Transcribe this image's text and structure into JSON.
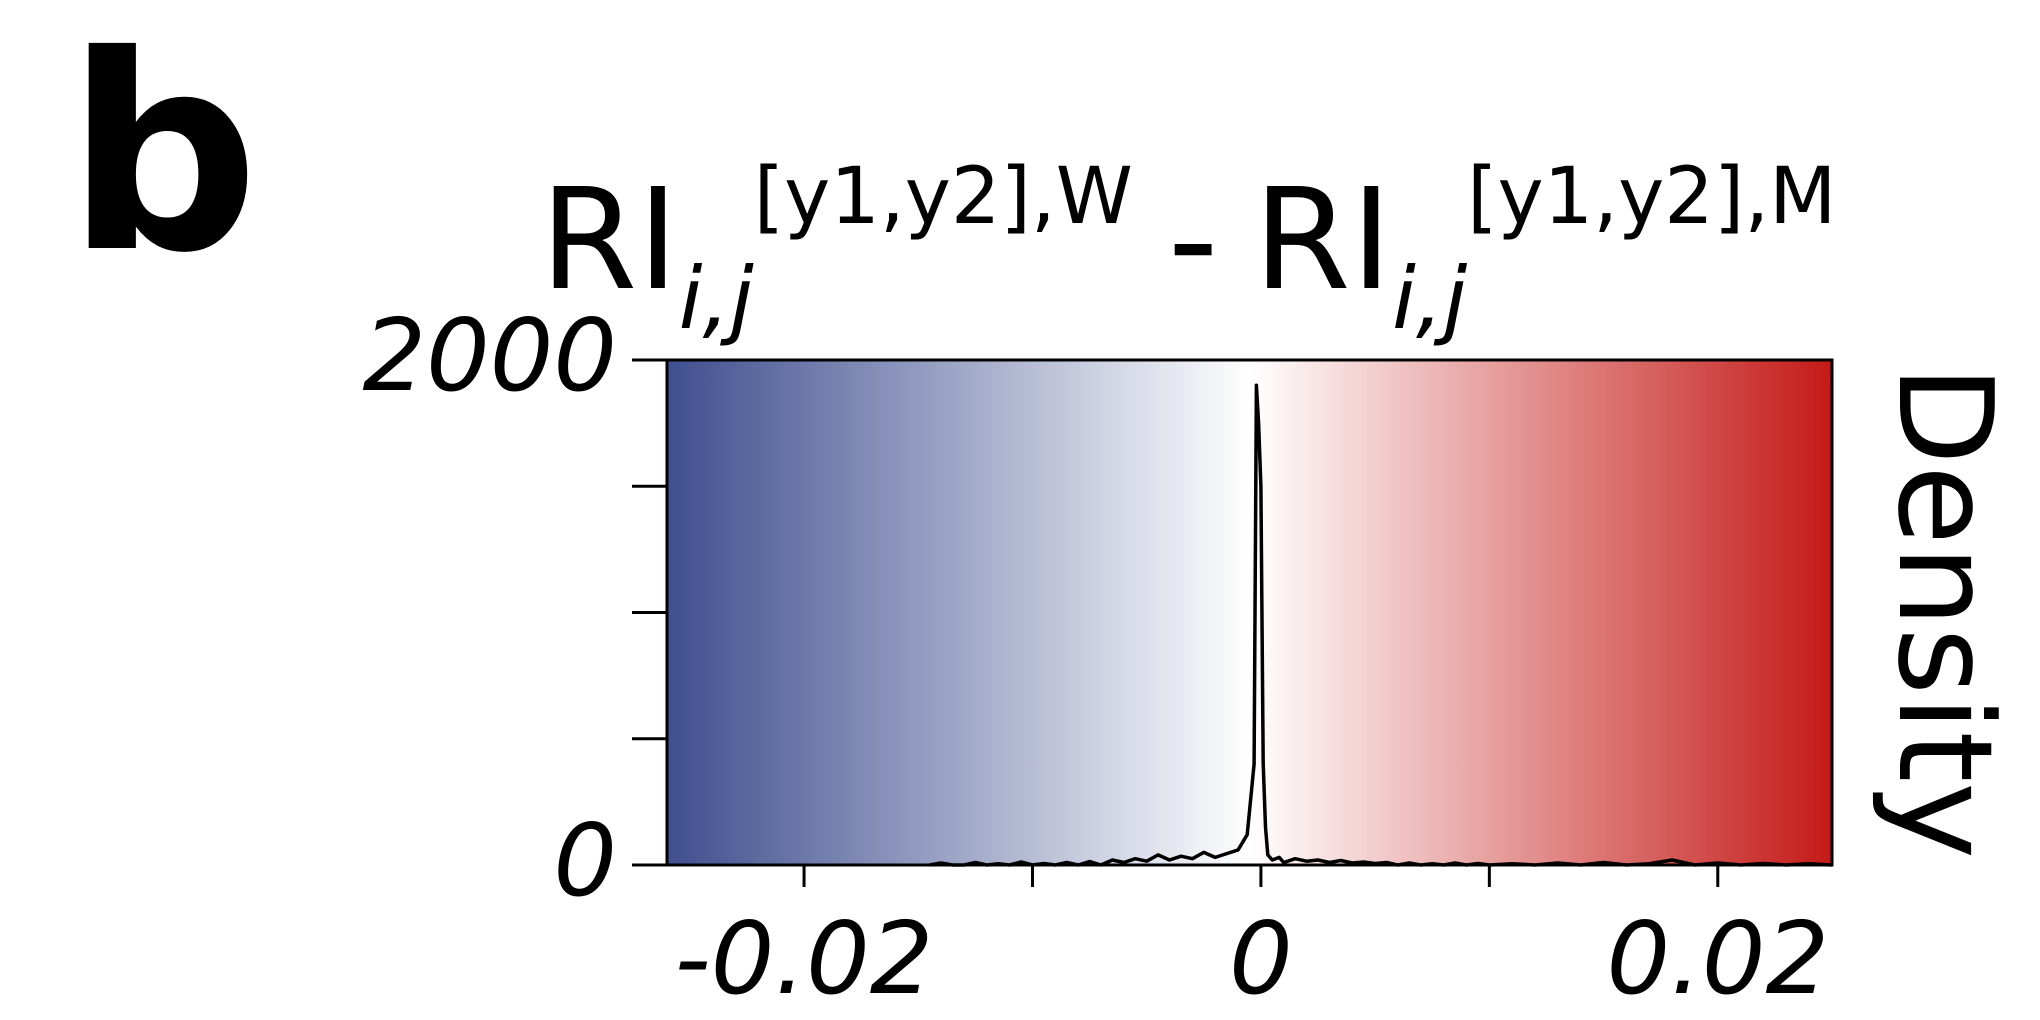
{
  "panel": {
    "label": "b"
  },
  "chart_data": {
    "type": "area",
    "title": {
      "left_main": "RI",
      "left_sub": "i,j",
      "left_sup": "[y1,y2],W",
      "operator": "-",
      "right_main": "RI",
      "right_sub": "i,j",
      "right_sup": "[y1,y2],M"
    },
    "xlabel": "",
    "ylabel": "Density",
    "xlim": [
      -0.026,
      0.025
    ],
    "ylim": [
      0,
      2000
    ],
    "x_ticks": [
      -0.02,
      -0.01,
      0,
      0.01,
      0.02
    ],
    "x_tick_labels": [
      "-0.02",
      "",
      "0",
      "",
      "0.02"
    ],
    "y_ticks": [
      0,
      500,
      1000,
      1500,
      2000
    ],
    "y_tick_labels": [
      "0",
      "",
      "",
      "",
      "2000"
    ],
    "grid": false,
    "background_gradient": {
      "from": "#3f4f8f",
      "mid": "#ffffff",
      "to": "#c41a17"
    },
    "line_color": "#000000",
    "series": [
      {
        "x": [
          -0.0145,
          -0.014,
          -0.0135,
          -0.013,
          -0.0125,
          -0.012,
          -0.0115,
          -0.011,
          -0.0105,
          -0.01,
          -0.0095,
          -0.009,
          -0.0085,
          -0.008,
          -0.0075,
          -0.007,
          -0.0065,
          -0.006,
          -0.0055,
          -0.005,
          -0.0045,
          -0.004,
          -0.0035,
          -0.003,
          -0.0025,
          -0.002,
          -0.0015,
          -0.001,
          -0.0006,
          -0.0003,
          -0.0002,
          -0.0001,
          0.0,
          0.0001,
          0.0002,
          0.0003,
          0.0005,
          0.0008,
          0.001,
          0.0015,
          0.002,
          0.0025,
          0.003,
          0.0035,
          0.004,
          0.0045,
          0.005,
          0.0055,
          0.006,
          0.0065,
          0.007,
          0.0075,
          0.008,
          0.0085,
          0.009,
          0.0095,
          0.01,
          0.011,
          0.012,
          0.013,
          0.014,
          0.015,
          0.016,
          0.017,
          0.018,
          0.019,
          0.02,
          0.021,
          0.022,
          0.023,
          0.024,
          0.025
        ],
        "y": [
          0,
          8,
          0,
          0,
          10,
          0,
          5,
          0,
          12,
          0,
          6,
          0,
          10,
          0,
          14,
          0,
          20,
          10,
          25,
          15,
          40,
          20,
          35,
          25,
          50,
          30,
          45,
          60,
          120,
          400,
          1900,
          1750,
          1500,
          400,
          150,
          40,
          20,
          30,
          10,
          25,
          15,
          20,
          10,
          18,
          8,
          12,
          6,
          10,
          0,
          8,
          0,
          5,
          0,
          8,
          0,
          6,
          0,
          5,
          0,
          8,
          0,
          10,
          0,
          5,
          20,
          0,
          8,
          0,
          6,
          0,
          5,
          0
        ]
      }
    ]
  }
}
